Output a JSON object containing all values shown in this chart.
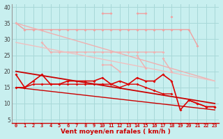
{
  "background_color": "#c8efef",
  "grid_color": "#a8d8d8",
  "xlabel": "Vent moyen/en rafales ( km/h )",
  "x": [
    0,
    1,
    2,
    3,
    4,
    5,
    6,
    7,
    8,
    9,
    10,
    11,
    12,
    13,
    14,
    15,
    16,
    17,
    18,
    19,
    20,
    21,
    22,
    23
  ],
  "ylim": [
    4,
    41
  ],
  "xlim": [
    -0.5,
    23.5
  ],
  "yticks": [
    5,
    10,
    15,
    20,
    25,
    30,
    35,
    40
  ],
  "series": [
    {
      "label": "light_top_flat",
      "color": "#f0a0a0",
      "linewidth": 1.0,
      "marker": "D",
      "markersize": 2.0,
      "values": [
        35,
        33,
        33,
        33,
        33,
        33,
        33,
        33,
        33,
        33,
        33,
        33,
        33,
        33,
        33,
        33,
        33,
        33,
        33,
        33,
        33,
        28,
        null,
        null
      ]
    },
    {
      "label": "light_top_diagonal",
      "color": "#f0b0b0",
      "linewidth": 1.0,
      "marker": null,
      "markersize": 0,
      "values": [
        35,
        null,
        null,
        null,
        null,
        null,
        null,
        null,
        null,
        null,
        null,
        null,
        null,
        null,
        null,
        null,
        null,
        null,
        null,
        null,
        null,
        null,
        null,
        17
      ]
    },
    {
      "label": "light_upper_rafales_line",
      "color": "#f0a0a0",
      "linewidth": 1.0,
      "marker": "D",
      "markersize": 2.0,
      "values": [
        null,
        null,
        null,
        null,
        null,
        null,
        null,
        null,
        null,
        null,
        38,
        38,
        null,
        null,
        38,
        38,
        null,
        null,
        37,
        null,
        null,
        null,
        null,
        null
      ]
    },
    {
      "label": "light_mid_flat",
      "color": "#f0b0b0",
      "linewidth": 1.0,
      "marker": "D",
      "markersize": 2.0,
      "values": [
        null,
        null,
        null,
        29,
        26,
        26,
        26,
        26,
        26,
        26,
        26,
        26,
        26,
        26,
        26,
        26,
        26,
        26,
        null,
        null,
        null,
        null,
        null,
        null
      ]
    },
    {
      "label": "light_mid_diagonal",
      "color": "#f0c0c0",
      "linewidth": 1.0,
      "marker": null,
      "markersize": 0,
      "values": [
        29,
        null,
        null,
        null,
        null,
        null,
        null,
        null,
        null,
        null,
        null,
        null,
        null,
        null,
        null,
        null,
        null,
        null,
        null,
        null,
        null,
        null,
        null,
        17
      ]
    },
    {
      "label": "light_lower_mid",
      "color": "#f0b0b0",
      "linewidth": 1.0,
      "marker": "D",
      "markersize": 2.0,
      "values": [
        null,
        null,
        null,
        null,
        null,
        null,
        null,
        null,
        null,
        null,
        22,
        22,
        20,
        null,
        25,
        21,
        null,
        24,
        20,
        null,
        null,
        null,
        null,
        null
      ]
    },
    {
      "label": "red_main_wavy",
      "color": "#dd0000",
      "linewidth": 1.2,
      "marker": "D",
      "markersize": 2.0,
      "values": [
        19,
        15,
        17,
        19,
        16,
        16,
        17,
        17,
        17,
        17,
        18,
        16,
        17,
        16,
        18,
        17,
        17,
        19,
        17,
        8,
        11,
        10,
        9,
        9
      ]
    },
    {
      "label": "red_second",
      "color": "#dd0000",
      "linewidth": 1.0,
      "marker": "D",
      "markersize": 2.0,
      "values": [
        15,
        15,
        16,
        16,
        16,
        16,
        16,
        16,
        16,
        16,
        16,
        16,
        15,
        16,
        16,
        15,
        14,
        13,
        13,
        null,
        11,
        10,
        9,
        9
      ]
    },
    {
      "label": "red_diagonal_upper",
      "color": "#cc0000",
      "linewidth": 1.3,
      "marker": null,
      "markersize": 0,
      "values": [
        20,
        null,
        null,
        null,
        null,
        null,
        null,
        null,
        null,
        null,
        null,
        null,
        null,
        null,
        null,
        null,
        null,
        null,
        null,
        null,
        null,
        null,
        null,
        10
      ]
    },
    {
      "label": "red_diagonal_lower",
      "color": "#cc0000",
      "linewidth": 1.0,
      "marker": null,
      "markersize": 0,
      "values": [
        15,
        null,
        null,
        null,
        null,
        null,
        null,
        null,
        null,
        null,
        null,
        null,
        null,
        null,
        null,
        null,
        null,
        null,
        null,
        null,
        null,
        null,
        null,
        8
      ]
    },
    {
      "label": "arrows_bottom",
      "color": "#dd4444",
      "linewidth": 0,
      "marker": "4",
      "markersize": 3.5,
      "values": [
        3.5,
        3.5,
        3.5,
        3.5,
        3.5,
        3.5,
        3.5,
        3.5,
        3.5,
        3.5,
        3.5,
        3.5,
        3.5,
        3.5,
        3.5,
        3.5,
        3.5,
        3.5,
        3.5,
        3.5,
        3.5,
        3.5,
        3.5,
        3.5
      ]
    }
  ]
}
